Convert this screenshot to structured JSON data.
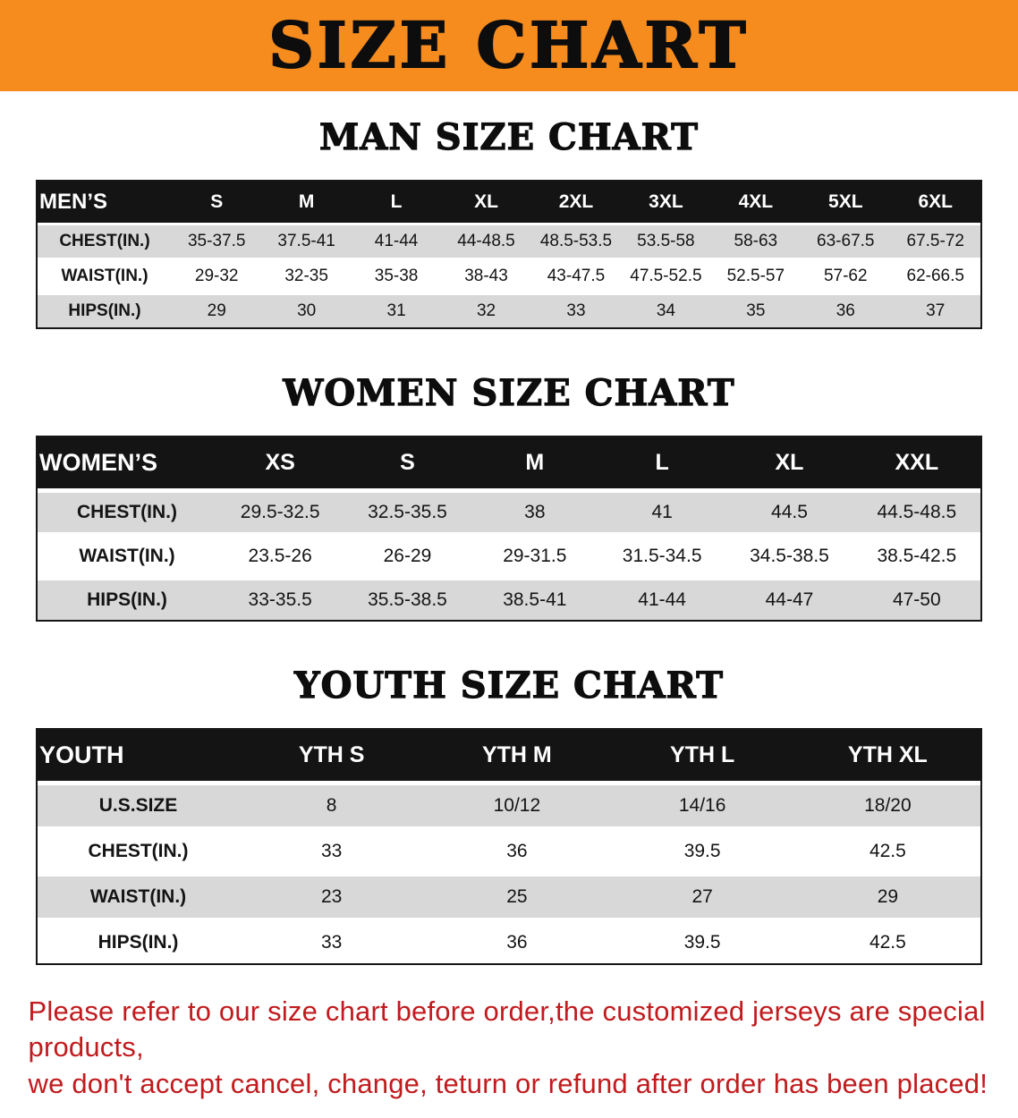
{
  "banner": {
    "title": "SIZE CHART"
  },
  "sections": [
    {
      "heading": "MAN SIZE CHART",
      "table": {
        "header": [
          "MEN’S",
          "S",
          "M",
          "L",
          "XL",
          "2XL",
          "3XL",
          "4XL",
          "5XL",
          "6XL"
        ],
        "rows": [
          [
            "CHEST(IN.)",
            "35-37.5",
            "37.5-41",
            "41-44",
            "44-48.5",
            "48.5-53.5",
            "53.5-58",
            "58-63",
            "63-67.5",
            "67.5-72"
          ],
          [
            "WAIST(IN.)",
            "29-32",
            "32-35",
            "35-38",
            "38-43",
            "43-47.5",
            "47.5-52.5",
            "52.5-57",
            "57-62",
            "62-66.5"
          ],
          [
            "HIPS(IN.)",
            "29",
            "30",
            "31",
            "32",
            "33",
            "34",
            "35",
            "36",
            "37"
          ]
        ]
      }
    },
    {
      "heading": "WOMEN SIZE CHART",
      "table": {
        "header": [
          "WOMEN’S",
          "XS",
          "S",
          "M",
          "L",
          "XL",
          "XXL"
        ],
        "rows": [
          [
            "CHEST(IN.)",
            "29.5-32.5",
            "32.5-35.5",
            "38",
            "41",
            "44.5",
            "44.5-48.5"
          ],
          [
            "WAIST(IN.)",
            "23.5-26",
            "26-29",
            "29-31.5",
            "31.5-34.5",
            "34.5-38.5",
            "38.5-42.5"
          ],
          [
            "HIPS(IN.)",
            "33-35.5",
            "35.5-38.5",
            "38.5-41",
            "41-44",
            "44-47",
            "47-50"
          ]
        ]
      }
    },
    {
      "heading": "YOUTH SIZE CHART",
      "table": {
        "header": [
          "YOUTH",
          "YTH S",
          "YTH M",
          "YTH L",
          "YTH XL"
        ],
        "rows": [
          [
            "U.S.SIZE",
            "8",
            "10/12",
            "14/16",
            "18/20"
          ],
          [
            "CHEST(IN.)",
            "33",
            "36",
            "39.5",
            "42.5"
          ],
          [
            "WAIST(IN.)",
            "23",
            "25",
            "27",
            "29"
          ],
          [
            "HIPS(IN.)",
            "33",
            "36",
            "39.5",
            "42.5"
          ]
        ]
      }
    }
  ],
  "footer": {
    "line1": "Please refer to our size chart before order,the customized jerseys are special products,",
    "line2": "we don't accept cancel, change, teturn or refund after order has been placed!"
  },
  "colors": {
    "banner_bg": "#F68B1E",
    "table_header_bg": "#141414",
    "row_stripe": "#D8D8D8",
    "note_red": "#C11B1E"
  },
  "chart_data": [
    {
      "type": "table",
      "title": "MAN SIZE CHART",
      "columns": [
        "MEN’S",
        "S",
        "M",
        "L",
        "XL",
        "2XL",
        "3XL",
        "4XL",
        "5XL",
        "6XL"
      ],
      "rows": [
        [
          "CHEST(IN.)",
          "35-37.5",
          "37.5-41",
          "41-44",
          "44-48.5",
          "48.5-53.5",
          "53.5-58",
          "58-63",
          "63-67.5",
          "67.5-72"
        ],
        [
          "WAIST(IN.)",
          "29-32",
          "32-35",
          "35-38",
          "38-43",
          "43-47.5",
          "47.5-52.5",
          "52.5-57",
          "57-62",
          "62-66.5"
        ],
        [
          "HIPS(IN.)",
          "29",
          "30",
          "31",
          "32",
          "33",
          "34",
          "35",
          "36",
          "37"
        ]
      ]
    },
    {
      "type": "table",
      "title": "WOMEN SIZE CHART",
      "columns": [
        "WOMEN’S",
        "XS",
        "S",
        "M",
        "L",
        "XL",
        "XXL"
      ],
      "rows": [
        [
          "CHEST(IN.)",
          "29.5-32.5",
          "32.5-35.5",
          "38",
          "41",
          "44.5",
          "44.5-48.5"
        ],
        [
          "WAIST(IN.)",
          "23.5-26",
          "26-29",
          "29-31.5",
          "31.5-34.5",
          "34.5-38.5",
          "38.5-42.5"
        ],
        [
          "HIPS(IN.)",
          "33-35.5",
          "35.5-38.5",
          "38.5-41",
          "41-44",
          "44-47",
          "47-50"
        ]
      ]
    },
    {
      "type": "table",
      "title": "YOUTH SIZE CHART",
      "columns": [
        "YOUTH",
        "YTH S",
        "YTH M",
        "YTH L",
        "YTH XL"
      ],
      "rows": [
        [
          "U.S.SIZE",
          "8",
          "10/12",
          "14/16",
          "18/20"
        ],
        [
          "CHEST(IN.)",
          "33",
          "36",
          "39.5",
          "42.5"
        ],
        [
          "WAIST(IN.)",
          "23",
          "25",
          "27",
          "29"
        ],
        [
          "HIPS(IN.)",
          "33",
          "36",
          "39.5",
          "42.5"
        ]
      ]
    }
  ]
}
